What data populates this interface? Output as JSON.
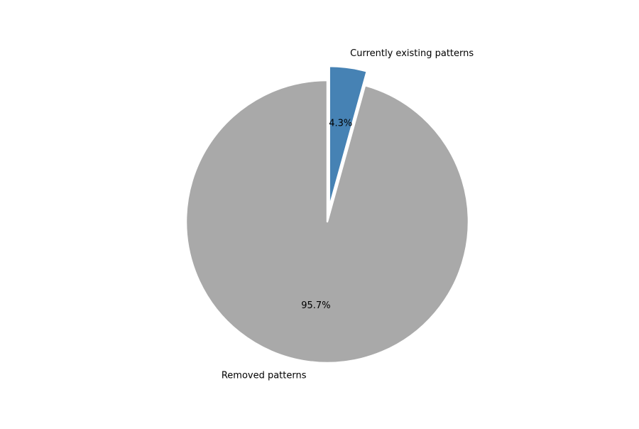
{
  "chart_data": {
    "type": "pie",
    "title": "",
    "slices": [
      {
        "label": "Currently existing patterns",
        "value": 4.3,
        "pct_label": "4.3%",
        "color": "#4682b4",
        "exploded": true
      },
      {
        "label": "Removed patterns",
        "value": 95.7,
        "pct_label": "95.7%",
        "color": "#a9a9a9",
        "exploded": false
      }
    ],
    "start_angle": "12 o'clock",
    "direction": "clockwise",
    "legend": "none"
  }
}
